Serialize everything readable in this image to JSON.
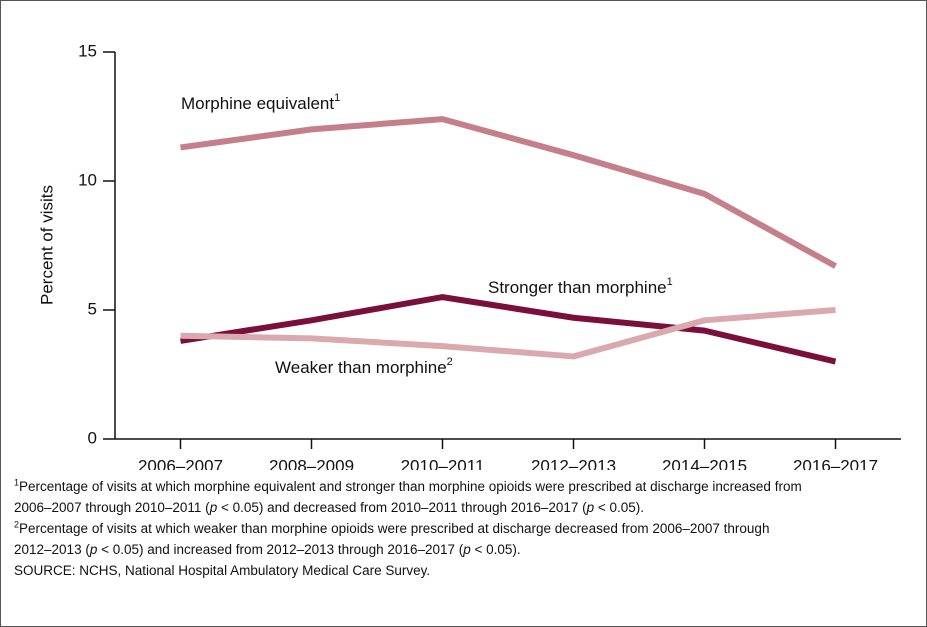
{
  "chart_data": {
    "type": "line",
    "y_label": "Percent of visits",
    "categories": [
      "2006–2007",
      "2008–2009",
      "2010–2011",
      "2012–2013",
      "2014–2015",
      "2016–2017"
    ],
    "series": [
      {
        "name": "Morphine equivalent",
        "footnote_ref": "1",
        "color": "#c47f8a",
        "values": [
          11.3,
          12.0,
          12.4,
          11.0,
          9.5,
          6.7
        ]
      },
      {
        "name": "Stronger than morphine",
        "footnote_ref": "1",
        "color": "#7a0f3b",
        "values": [
          3.8,
          4.6,
          5.5,
          4.7,
          4.2,
          3.0
        ]
      },
      {
        "name": "Weaker than morphine",
        "footnote_ref": "2",
        "color": "#d9a9ae",
        "values": [
          4.0,
          3.9,
          3.6,
          3.2,
          4.6,
          5.0
        ]
      }
    ],
    "ylim": [
      0,
      15
    ],
    "yticks": [
      0,
      5,
      10,
      15
    ],
    "grid": false,
    "footnotes": [
      {
        "marker": "1",
        "segments": [
          "Percentage of visits at which morphine equivalent and stronger than morphine opioids were prescribed at discharge increased from 2006–2007 through 2010–2011 (",
          "p",
          " < 0.05) and decreased from 2010–2011 through 2016–2017 (",
          "p",
          " < 0.05)."
        ]
      },
      {
        "marker": "2",
        "segments": [
          "Percentage of visits at which weaker than morphine opioids were prescribed at discharge decreased from 2006–2007 through 2012–2013 (",
          "p",
          " < 0.05) and increased from 2012–2013 through 2016–2017 (",
          "p",
          " < 0.05)."
        ]
      }
    ],
    "source": "SOURCE: NCHS, National Hospital Ambulatory Medical Care Survey."
  }
}
